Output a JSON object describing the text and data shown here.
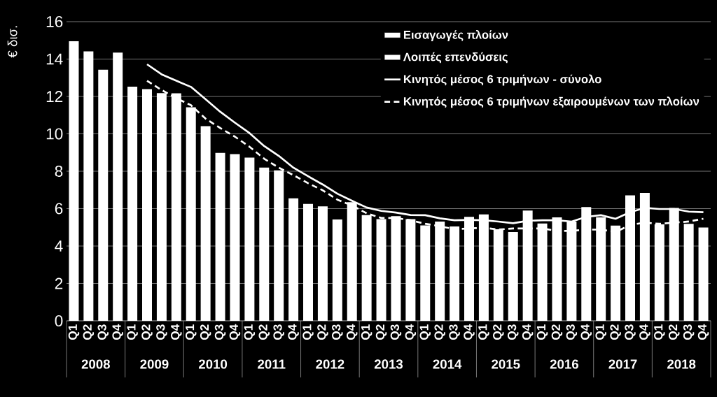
{
  "chart_data": {
    "type": "bar",
    "ylabel": "€ δισ.",
    "stacked": true,
    "grid": "y",
    "legend": "top right",
    "marker": "none",
    "categories": [
      "Q1",
      "Q2",
      "Q3",
      "Q4",
      "Q1",
      "Q2",
      "Q3",
      "Q4",
      "Q1",
      "Q2",
      "Q3",
      "Q4",
      "Q1",
      "Q2",
      "Q3",
      "Q4",
      "Q1",
      "Q2",
      "Q3",
      "Q4",
      "Q1",
      "Q2",
      "Q3",
      "Q4",
      "Q1",
      "Q2",
      "Q3",
      "Q4",
      "Q1",
      "Q2",
      "Q3",
      "Q4",
      "Q1",
      "Q2",
      "Q3",
      "Q4",
      "Q1",
      "Q2",
      "Q3",
      "Q4",
      "Q1",
      "Q2",
      "Q3",
      "Q4"
    ],
    "annotations": [
      {
        "text": "2008"
      },
      {
        "text": "2009"
      },
      {
        "text": "2010"
      },
      {
        "text": "2011"
      },
      {
        "text": "2012"
      },
      {
        "text": "2013"
      },
      {
        "text": "2014"
      },
      {
        "text": "2015"
      },
      {
        "text": "2016"
      },
      {
        "text": "2017"
      },
      {
        "text": "2018"
      }
    ],
    "ylim": [
      0,
      16
    ],
    "yticks": [
      0,
      2,
      4,
      6,
      8,
      10,
      12,
      14,
      16
    ],
    "series": [
      {
        "name": "Εισαγωγές πλοίων",
        "color": "#ffffff",
        "values": [
          null,
          null,
          null,
          null,
          null,
          null,
          null,
          null,
          null,
          null,
          null,
          null,
          null,
          null,
          null,
          null,
          null,
          null,
          null,
          null,
          null,
          null,
          null,
          null,
          null,
          null,
          null,
          null,
          null,
          null,
          null,
          null,
          null,
          null,
          null,
          null,
          null,
          null,
          null,
          null,
          null,
          null,
          null,
          null
        ]
      },
      {
        "name": "Λοιπές επενδύσεις",
        "color": "#ffffff",
        "values": [
          14.95,
          14.41,
          13.43,
          14.35,
          12.52,
          12.39,
          12.18,
          12.17,
          11.42,
          10.41,
          8.98,
          8.92,
          8.73,
          8.2,
          8.05,
          6.55,
          6.25,
          6.12,
          5.42,
          6.35,
          5.65,
          5.44,
          5.6,
          5.44,
          5.1,
          5.31,
          5.05,
          5.56,
          5.69,
          4.9,
          4.75,
          5.9,
          5.21,
          5.53,
          5.31,
          6.08,
          5.53,
          5.09,
          6.71,
          6.84,
          5.16,
          6.04,
          5.19,
          4.99
        ]
      },
      {
        "name": "Κινητός μέσος 6 τριμήνων - σύνολο",
        "type": "line",
        "line_style": "solid",
        "color": "#ffffff",
        "values": [
          null,
          null,
          null,
          null,
          null,
          13.72,
          13.18,
          12.84,
          12.51,
          11.85,
          11.18,
          10.6,
          10.04,
          9.35,
          8.82,
          8.19,
          7.73,
          7.29,
          6.8,
          6.42,
          6.06,
          5.88,
          5.79,
          5.66,
          5.65,
          5.48,
          5.38,
          5.4,
          5.38,
          5.31,
          5.22,
          5.35,
          5.38,
          5.38,
          5.31,
          5.56,
          5.65,
          5.46,
          5.81,
          6.04,
          5.98,
          5.98,
          5.84,
          5.81
        ]
      },
      {
        "name": "Κινητός μέσος 6 τριμήνων εξαιρουμένων των πλοίων",
        "type": "line",
        "line_style": "dashed",
        "color": "#ffffff",
        "values": [
          null,
          null,
          null,
          null,
          null,
          12.84,
          12.34,
          11.91,
          11.53,
          10.81,
          10.31,
          9.85,
          9.31,
          8.67,
          8.19,
          7.79,
          7.36,
          6.98,
          6.48,
          6.17,
          5.75,
          5.5,
          5.5,
          5.38,
          5.19,
          5.06,
          4.9,
          4.94,
          4.98,
          4.88,
          4.94,
          4.94,
          4.94,
          4.81,
          4.81,
          4.88,
          4.88,
          4.75,
          5.13,
          5.25,
          5.19,
          5.25,
          5.31,
          5.46
        ]
      }
    ]
  }
}
